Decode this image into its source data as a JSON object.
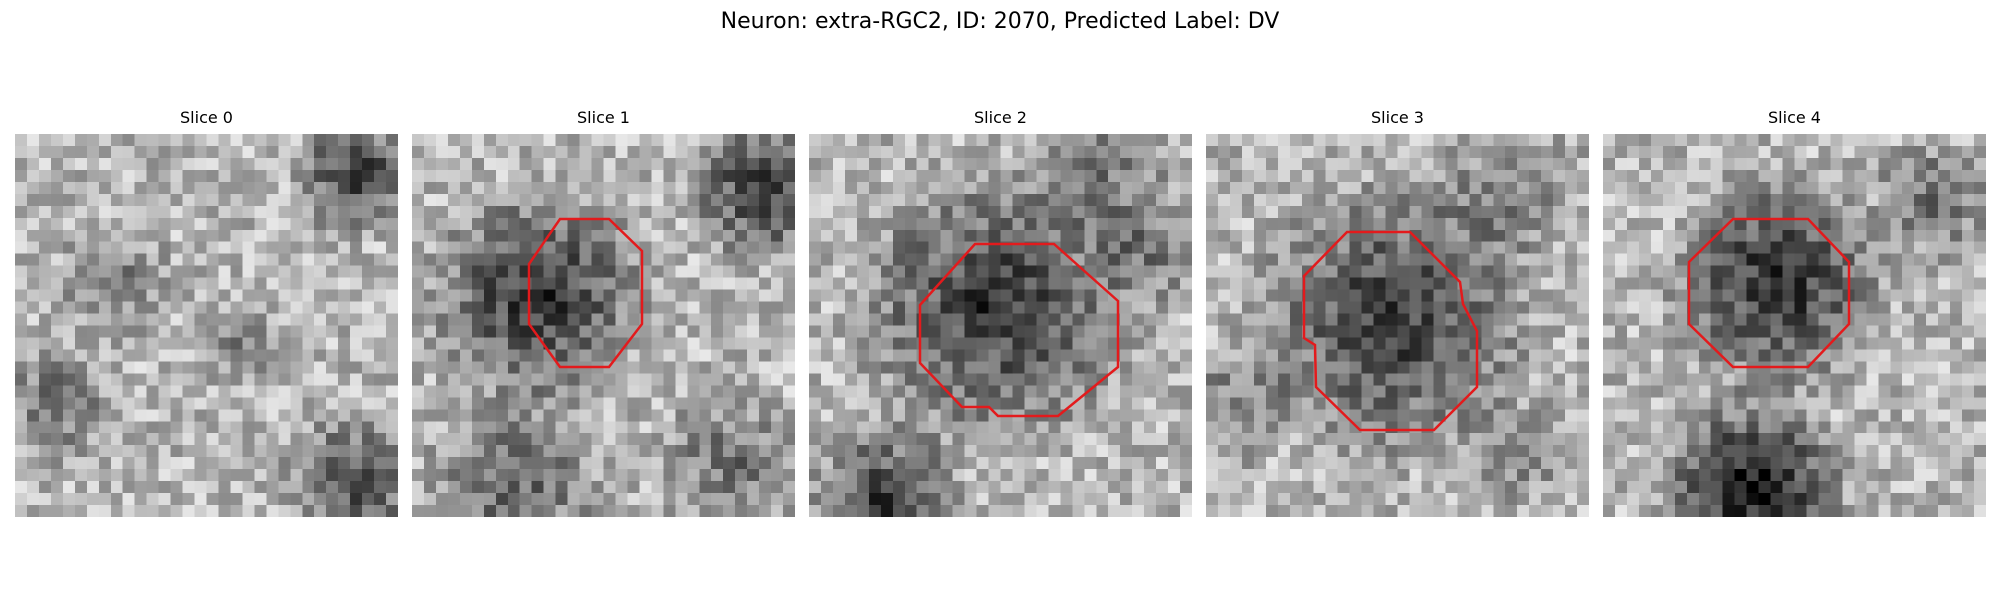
{
  "figure": {
    "title": "Neuron: extra-RGC2, ID: 2070, Predicted Label: DV",
    "panels": [
      {
        "title": "Slice 0",
        "has_roi": false
      },
      {
        "title": "Slice 1",
        "has_roi": true
      },
      {
        "title": "Slice 2",
        "has_roi": true
      },
      {
        "title": "Slice 3",
        "has_roi": true
      },
      {
        "title": "Slice 4",
        "has_roi": true
      }
    ],
    "colormap": "gray",
    "roi_color": "#e31a1c"
  }
}
